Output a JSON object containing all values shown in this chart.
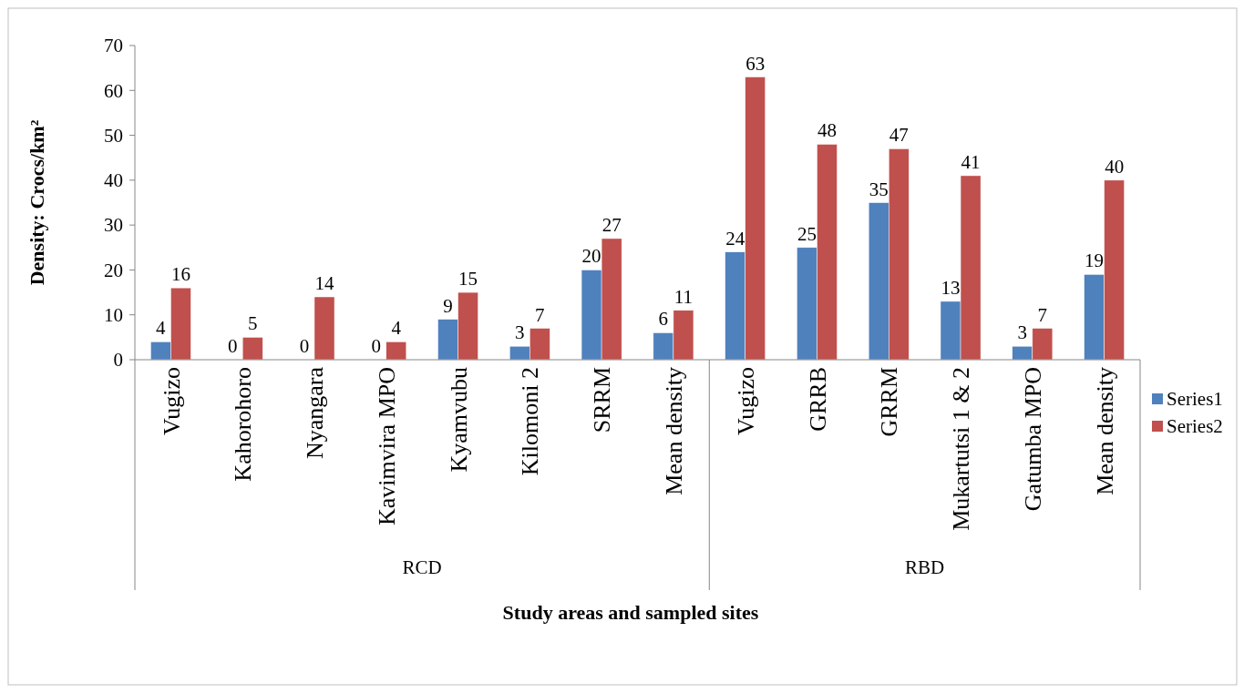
{
  "chart_data": {
    "type": "bar",
    "xlabel": "Study areas and sampled sites",
    "ylabel": "Density: Crocs/km²",
    "categories": [
      "Vugizo",
      "Kahorohoro",
      "Nyangara",
      "Kavimvira MPO",
      "Kyamvubu",
      "Kilomoni 2",
      "SRRM",
      "Mean density",
      "Vugizo",
      "GRRB",
      "GRRM",
      "Mukartutsi 1 & 2",
      "Gatumba MPO",
      "Mean density"
    ],
    "series": [
      {
        "name": "Series1",
        "color": "#4f81bd",
        "values": [
          4,
          0,
          0,
          0,
          9,
          3,
          20,
          6,
          24,
          25,
          35,
          13,
          3,
          19
        ]
      },
      {
        "name": "Series2",
        "color": "#c0504d",
        "values": [
          16,
          5,
          14,
          4,
          15,
          7,
          27,
          11,
          63,
          48,
          47,
          41,
          7,
          40
        ]
      }
    ],
    "ylim": [
      0,
      70
    ],
    "yticks": [
      0,
      10,
      20,
      30,
      40,
      50,
      60,
      70
    ],
    "grid": false,
    "legend": "right",
    "data_labels": true,
    "annotations": [
      "RCD",
      "RBD"
    ]
  }
}
